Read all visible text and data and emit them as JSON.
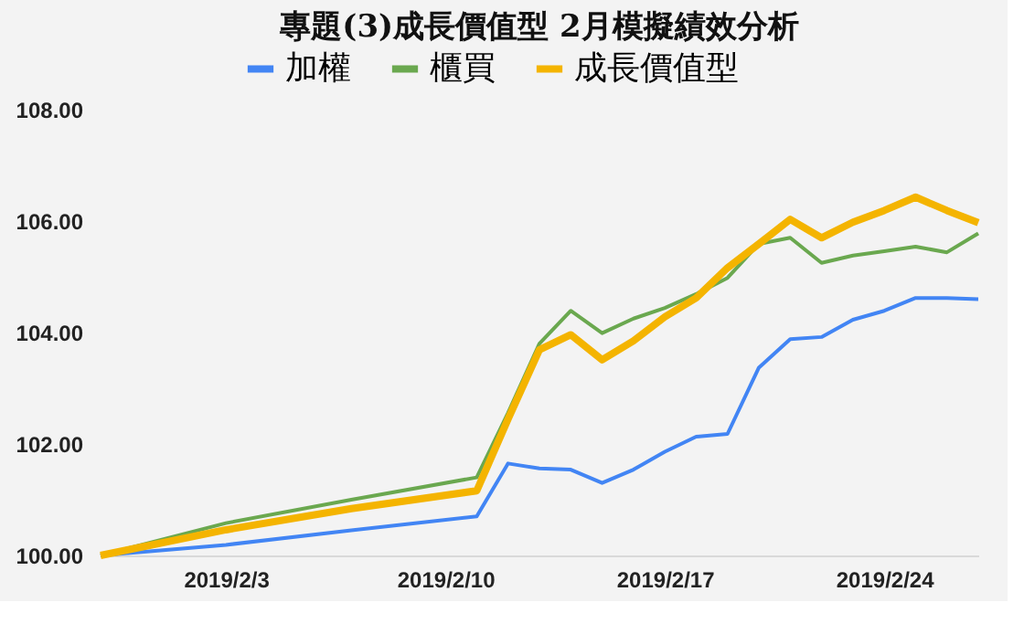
{
  "chart_data": {
    "type": "line",
    "title": "專題(3)成長價值型 2月模擬績效分析",
    "x": [
      "2019-01-30",
      "2019-02-03",
      "2019-02-07",
      "2019-02-11",
      "2019-02-12",
      "2019-02-13",
      "2019-02-14",
      "2019-02-15",
      "2019-02-16",
      "2019-02-17",
      "2019-02-18",
      "2019-02-19",
      "2019-02-20",
      "2019-02-21",
      "2019-02-22",
      "2019-02-23",
      "2019-02-24",
      "2019-02-25",
      "2019-02-26",
      "2019-02-27"
    ],
    "series": [
      {
        "name": "加權",
        "color": "#4285f4",
        "values": [
          100.0,
          100.19,
          100.45,
          100.7,
          101.65,
          101.56,
          101.54,
          101.3,
          101.54,
          101.86,
          102.13,
          102.18,
          103.37,
          103.88,
          103.92,
          104.23,
          104.39,
          104.62,
          104.62,
          104.6
        ]
      },
      {
        "name": "櫃買",
        "color": "#6aa84f",
        "values": [
          100.0,
          100.58,
          101.0,
          101.4,
          102.56,
          103.8,
          104.39,
          103.99,
          104.25,
          104.44,
          104.69,
          104.98,
          105.59,
          105.7,
          105.25,
          105.38,
          105.46,
          105.54,
          105.44,
          105.78
        ]
      },
      {
        "name": "成長價值型",
        "color": "#f4b400",
        "values": [
          100.0,
          100.46,
          100.84,
          101.16,
          102.45,
          103.69,
          103.96,
          103.51,
          103.85,
          104.28,
          104.62,
          105.16,
          105.59,
          106.03,
          105.7,
          105.98,
          106.19,
          106.43,
          106.19,
          105.97
        ]
      }
    ],
    "xlim": [
      "2019-01-30",
      "2019-02-27"
    ],
    "xticks": [
      {
        "value": "2019-02-03",
        "label": "2019/2/3"
      },
      {
        "value": "2019-02-10",
        "label": "2019/2/10"
      },
      {
        "value": "2019-02-17",
        "label": "2019/2/17"
      },
      {
        "value": "2019-02-24",
        "label": "2019/2/24"
      }
    ],
    "ylim": [
      100,
      108
    ],
    "yticks": [
      {
        "value": 100,
        "label": "100.00"
      },
      {
        "value": 102,
        "label": "102.00"
      },
      {
        "value": 104,
        "label": "104.00"
      },
      {
        "value": 106,
        "label": "106.00"
      },
      {
        "value": 108,
        "label": "108.00"
      }
    ],
    "legend": "top",
    "grid": false
  }
}
